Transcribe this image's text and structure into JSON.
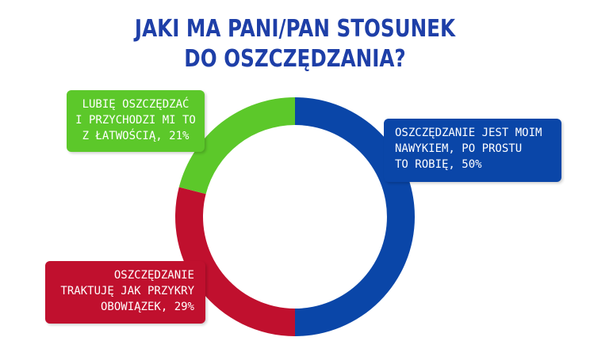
{
  "title": {
    "line1": "JAKI MA PANI/PAN STOSUNEK",
    "line2": "DO OSZCZĘDZANIA?"
  },
  "chart_data": {
    "type": "pie",
    "donut": true,
    "title": "JAKI MA PANI/PAN STOSUNEK DO OSZCZĘDZANIA?",
    "slices": [
      {
        "key": "blue",
        "value": 50,
        "color": "#0a46a8",
        "label_lines": [
          "OSZCZĘDZANIE JEST MOIM",
          "NAWYKIEM, PO PROSTU",
          "TO ROBIĘ, 50%"
        ]
      },
      {
        "key": "red",
        "value": 29,
        "color": "#c0102e",
        "label_lines": [
          "OSZCZĘDZANIE",
          "TRAKTUJĘ JAK PRZYKRY",
          "OBOWIĄZEK, 29%"
        ]
      },
      {
        "key": "green",
        "value": 21,
        "color": "#5cc82a",
        "label_lines": [
          "LUBIĘ OSZCZĘDZAĆ",
          "I PRZYCHODZI MI TO",
          "Z ŁATWOŚCIĄ, 21%"
        ]
      }
    ]
  }
}
